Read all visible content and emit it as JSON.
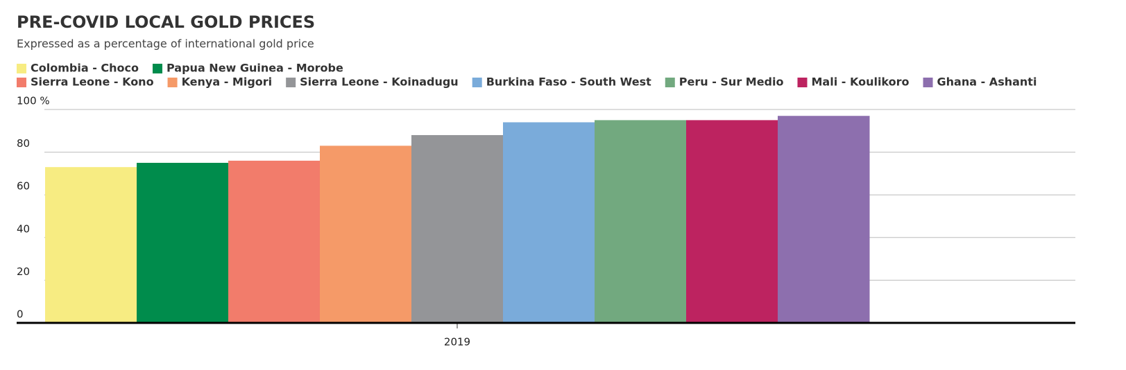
{
  "chart_data": {
    "type": "bar",
    "title": "PRE-COVID LOCAL GOLD PRICES",
    "subtitle": "Expressed as a percentage of international gold price",
    "categories": [
      "2019"
    ],
    "series": [
      {
        "name": "Colombia - Choco",
        "color": "#f7ec82",
        "values": [
          73
        ]
      },
      {
        "name": "Papua New Guinea - Morobe",
        "color": "#008c4c",
        "values": [
          75
        ]
      },
      {
        "name": "Sierra Leone - Kono",
        "color": "#f27c6b",
        "values": [
          76
        ]
      },
      {
        "name": "Kenya - Migori",
        "color": "#f59a68",
        "values": [
          83
        ]
      },
      {
        "name": "Sierra Leone - Koinadugu",
        "color": "#949598",
        "values": [
          88
        ]
      },
      {
        "name": "Burkina Faso - South West",
        "color": "#7aabda",
        "values": [
          94
        ]
      },
      {
        "name": "Peru - Sur Medio",
        "color": "#72a97f",
        "values": [
          95
        ]
      },
      {
        "name": "Mali - Koulikoro",
        "color": "#bd2360",
        "values": [
          95
        ]
      },
      {
        "name": "Ghana - Ashanti",
        "color": "#8d6fae",
        "values": [
          97
        ]
      }
    ],
    "ylim": [
      0,
      100
    ],
    "yticks": [
      0,
      20,
      40,
      60,
      80,
      {
        "value": 100,
        "label": "100 %"
      }
    ],
    "grid": true
  }
}
